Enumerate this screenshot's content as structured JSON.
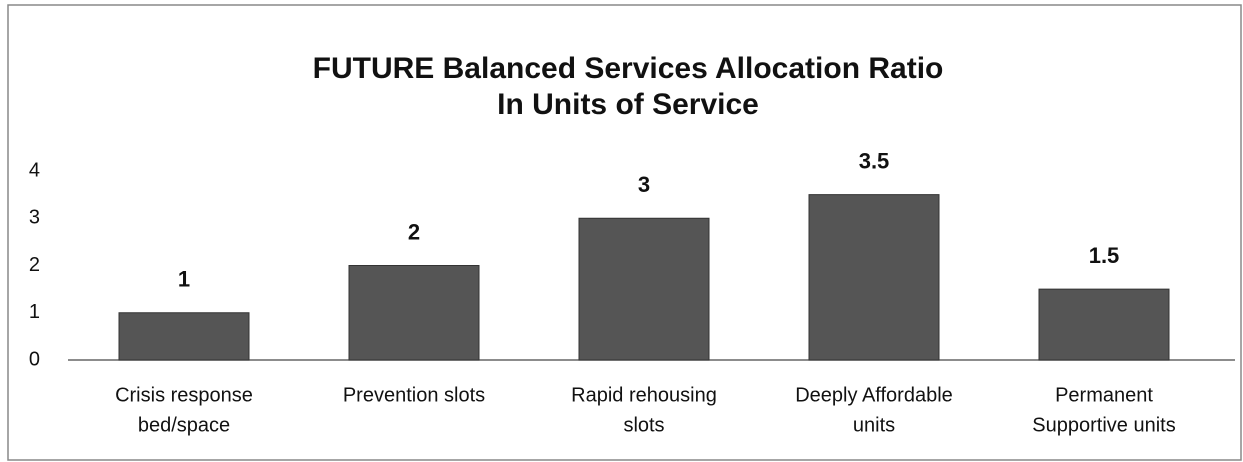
{
  "chart_data": {
    "type": "bar",
    "title": [
      "FUTURE Balanced Services Allocation Ratio",
      "In Units of Service"
    ],
    "categories": [
      [
        "Crisis response",
        "bed/space"
      ],
      [
        "Prevention slots"
      ],
      [
        "Rapid rehousing",
        "slots"
      ],
      [
        "Deeply Affordable",
        "units"
      ],
      [
        "Permanent",
        "Supportive units"
      ]
    ],
    "values": [
      1,
      2,
      3,
      3.5,
      1.5
    ],
    "color": "#555555",
    "ylim": [
      0,
      4
    ],
    "yticks": [
      0,
      1,
      2,
      3,
      4
    ],
    "grid": false
  }
}
